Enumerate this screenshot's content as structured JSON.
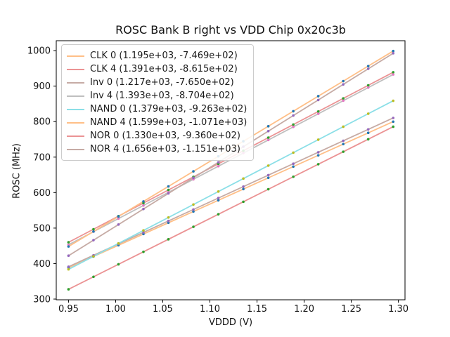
{
  "chart_data": {
    "type": "scatter",
    "title": "ROSC Bank B right vs VDD Chip 0x20c3b",
    "xlabel": "VDDD (V)",
    "ylabel": "ROSC (MHz)",
    "xlim": [
      0.937,
      1.307
    ],
    "ylim": [
      298,
      1028
    ],
    "grid": false,
    "legend_position": "upper-left",
    "x_ticks": [
      0.95,
      1.0,
      1.05,
      1.1,
      1.15,
      1.2,
      1.25,
      1.3
    ],
    "x_tick_labels": [
      "0.95",
      "1.00",
      "1.05",
      "1.10",
      "1.15",
      "1.20",
      "1.25",
      "1.30"
    ],
    "y_ticks": [
      300,
      400,
      500,
      600,
      700,
      800,
      900,
      1000
    ],
    "y_tick_labels": [
      "300",
      "400",
      "500",
      "600",
      "700",
      "800",
      "900",
      "1000"
    ],
    "x": [
      0.95,
      0.9765,
      1.003,
      1.0295,
      1.056,
      1.0825,
      1.109,
      1.1355,
      1.162,
      1.1885,
      1.215,
      1.2415,
      1.268,
      1.2945
    ],
    "series": [
      {
        "name": "CLK 0",
        "label": "CLK 0 (1.195e+03, -7.469e+02)",
        "slope": 1195,
        "intercept": -746.9,
        "line_color": "#ffbf87",
        "marker_color": "#1f77b4",
        "y": [
          388.4,
          420.0,
          451.7,
          483.4,
          515.0,
          546.7,
          578.4,
          610.0,
          641.7,
          673.4,
          705.0,
          736.7,
          768.4,
          800.0
        ]
      },
      {
        "name": "CLK 4",
        "label": "CLK 4 (1.391e+03, -8.615e+02)",
        "slope": 1391,
        "intercept": -861.5,
        "line_color": "#eb9394",
        "marker_color": "#2ca02c",
        "y": [
          460.0,
          496.8,
          533.7,
          570.5,
          607.4,
          644.3,
          681.1,
          718.0,
          754.8,
          791.7,
          828.6,
          865.4,
          902.3,
          939.2
        ]
      },
      {
        "name": "Inv 0",
        "label": "Inv 0 (1.217e+03, -7.650e+02)",
        "slope": 1217,
        "intercept": -765.0,
        "line_color": "#c6aba5",
        "marker_color": "#9467bd",
        "y": [
          391.2,
          423.4,
          455.7,
          487.9,
          520.2,
          552.4,
          584.7,
          616.9,
          649.2,
          681.4,
          713.7,
          745.9,
          778.2,
          810.4
        ]
      },
      {
        "name": "Inv 4",
        "label": "Inv 4 (1.393e+03, -8.704e+02)",
        "slope": 1393,
        "intercept": -870.4,
        "line_color": "#bfbfbf",
        "marker_color": "#e377c2",
        "y": [
          453.0,
          489.9,
          526.8,
          563.7,
          600.6,
          637.5,
          674.4,
          711.4,
          748.3,
          785.2,
          822.1,
          859.0,
          895.9,
          932.8
        ]
      },
      {
        "name": "NAND 0",
        "label": "NAND 0 (1.379e+03, -9.263e+02)",
        "slope": 1379,
        "intercept": -926.3,
        "line_color": "#8bdfe7",
        "marker_color": "#bcbd22",
        "y": [
          383.8,
          420.3,
          456.8,
          493.4,
          529.9,
          566.5,
          603.0,
          639.6,
          676.1,
          712.6,
          749.2,
          785.7,
          822.3,
          858.8
        ]
      },
      {
        "name": "NAND 4",
        "label": "NAND 4 (1.599e+03, -1.071e+03)",
        "slope": 1599,
        "intercept": -1071.0,
        "line_color": "#ffbf87",
        "marker_color": "#1f77b4",
        "y": [
          448.1,
          490.4,
          532.8,
          575.2,
          617.5,
          659.9,
          702.3,
          744.7,
          787.0,
          829.4,
          871.8,
          914.2,
          956.5,
          998.9
        ]
      },
      {
        "name": "NOR 0",
        "label": "NOR 0 (1.330e+03, -9.360e+02)",
        "slope": 1330,
        "intercept": -936.0,
        "line_color": "#eb9394",
        "marker_color": "#2ca02c",
        "y": [
          327.5,
          362.7,
          398.0,
          433.2,
          468.5,
          503.7,
          539.0,
          574.2,
          609.5,
          644.7,
          680.0,
          715.2,
          750.4,
          785.7
        ]
      },
      {
        "name": "NOR 4",
        "label": "NOR 4 (1.656e+03, -1.151e+03)",
        "slope": 1656,
        "intercept": -1151.0,
        "line_color": "#c6aba5",
        "marker_color": "#9467bd",
        "y": [
          422.2,
          466.1,
          510.0,
          553.9,
          597.7,
          641.6,
          685.5,
          729.4,
          773.3,
          817.2,
          861.0,
          904.9,
          948.8,
          992.7
        ]
      }
    ]
  }
}
